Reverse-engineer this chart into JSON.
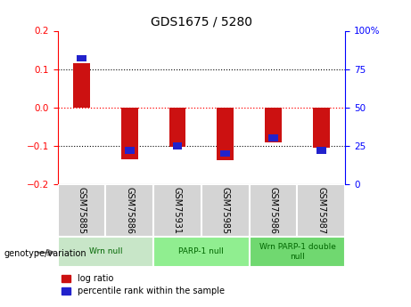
{
  "title": "GDS1675 / 5280",
  "samples": [
    "GSM75885",
    "GSM75886",
    "GSM75931",
    "GSM75985",
    "GSM75986",
    "GSM75987"
  ],
  "log_ratio": [
    0.115,
    -0.135,
    -0.102,
    -0.138,
    -0.09,
    -0.105
  ],
  "percentile_rank": [
    82,
    22,
    25,
    20,
    30,
    22
  ],
  "group_boundaries": [
    [
      0,
      1,
      "Wrn null",
      "#c8e6c8"
    ],
    [
      2,
      3,
      "PARP-1 null",
      "#90ee90"
    ],
    [
      4,
      5,
      "Wrn PARP-1 double\nnull",
      "#70d870"
    ]
  ],
  "ylim_left": [
    -0.2,
    0.2
  ],
  "ylim_right": [
    0,
    100
  ],
  "yticks_left": [
    -0.2,
    -0.1,
    0.0,
    0.1,
    0.2
  ],
  "yticks_right": [
    0,
    25,
    50,
    75,
    100
  ],
  "ytick_labels_right": [
    "0",
    "25",
    "50",
    "75",
    "100%"
  ],
  "bar_color_red": "#cc1111",
  "bar_color_blue": "#2222cc",
  "bar_width": 0.35,
  "blue_bar_width": 0.2,
  "blue_bar_height": 0.018,
  "legend_label_red": "log ratio",
  "legend_label_blue": "percentile rank within the sample",
  "genotype_label": "genotype/variation"
}
